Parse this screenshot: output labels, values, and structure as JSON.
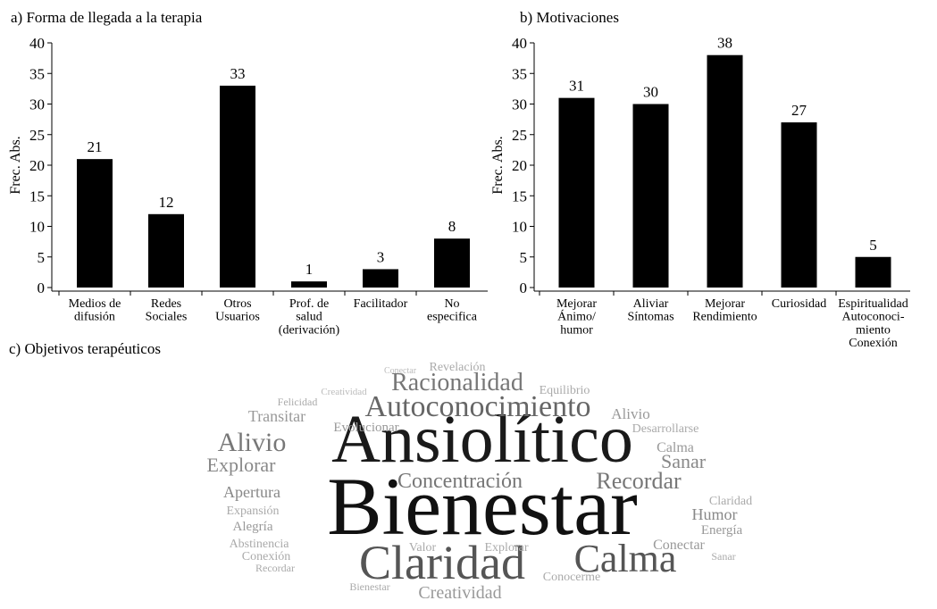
{
  "chart_data": [
    {
      "type": "bar",
      "title": "a) Forma de llegada a la terapia",
      "ylabel": "Frec. Abs.",
      "categories": [
        "Medios de\ndifusión",
        "Redes\nSociales",
        "Otros\nUsuarios",
        "Prof. de\nsalud\n(derivación)",
        "Facilitador",
        "No\nespecifica"
      ],
      "values": [
        21,
        12,
        33,
        1,
        3,
        8
      ],
      "color": "#000000",
      "ylim": [
        0,
        40
      ],
      "yticks": [
        0,
        5,
        10,
        15,
        20,
        25,
        30,
        35,
        40
      ]
    },
    {
      "type": "bar",
      "title": "b) Motivaciones",
      "ylabel": "Frec. Abs.",
      "categories": [
        "Mejorar\nÁnimo/\nhumor",
        "Aliviar\nSíntomas",
        "Mejorar\nRendimiento",
        "Curiosidad",
        "Espiritualidad\nAutoconoci-\nmiento\nConexión"
      ],
      "values": [
        31,
        30,
        38,
        27,
        5
      ],
      "color": "#000000",
      "ylim": [
        0,
        40
      ],
      "yticks": [
        0,
        5,
        10,
        15,
        20,
        25,
        30,
        35,
        40
      ]
    },
    {
      "type": "wordcloud",
      "title": "c) Objetivos terapéuticos",
      "words": [
        "Ansiolítico",
        "Bienestar",
        "Claridad",
        "Calma",
        "Autoconocimiento",
        "Racionalidad",
        "Concentración",
        "Recordar",
        "Alivio",
        "Explorar",
        "Sanar",
        "Apertura",
        "Humor",
        "Energía",
        "Conectar",
        "Creatividad",
        "Transitar",
        "Evolucionar",
        "Alivio",
        "Revelación",
        "Equilibrio",
        "Desarrollarse",
        "Calma",
        "Expansión",
        "Alegría",
        "Abstinencia",
        "Conexión",
        "Recordar",
        "Valor",
        "Explorar",
        "Conocerme",
        "Bienestar",
        "Felicidad",
        "Creatividad",
        "Conectar",
        "Claridad",
        "Sanar"
      ]
    }
  ]
}
